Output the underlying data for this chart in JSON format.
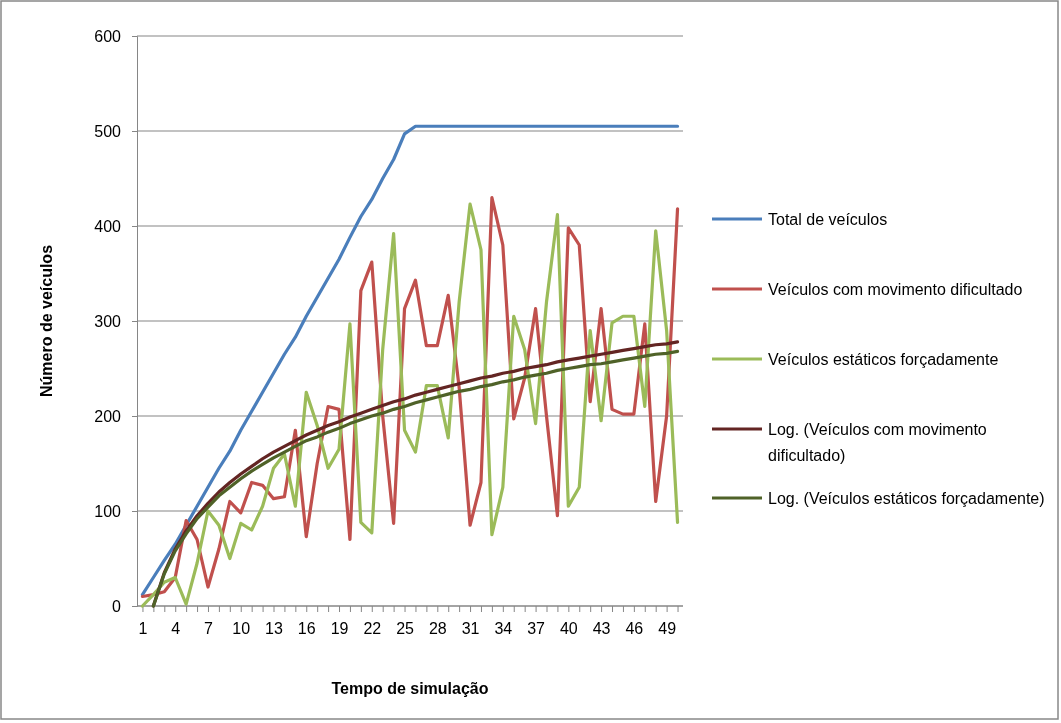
{
  "chart_data": {
    "type": "line",
    "xlabel": "Tempo de simulação",
    "ylabel": "Número de veículos",
    "categories": [
      "1",
      null,
      null,
      "4",
      null,
      null,
      "7",
      null,
      null,
      "10",
      null,
      null,
      "13",
      null,
      null,
      "16",
      null,
      null,
      "19",
      null,
      null,
      "22",
      null,
      null,
      "25",
      null,
      null,
      "28",
      null,
      null,
      "31",
      null,
      null,
      "34",
      null,
      null,
      "37",
      null,
      null,
      "40",
      null,
      null,
      "43",
      null,
      null,
      "46",
      null,
      null,
      "49",
      null
    ],
    "ylim": [
      0,
      600
    ],
    "yticks": [
      0,
      100,
      200,
      300,
      400,
      500,
      600
    ],
    "grid": "y",
    "legend": "right",
    "marker": "none",
    "line_style": "solid",
    "series": [
      {
        "name": "Total de veículos",
        "color": "#4a7ebb",
        "values": [
          12,
          30,
          48,
          65,
          85,
          105,
          125,
          145,
          163,
          185,
          205,
          225,
          245,
          265,
          283,
          305,
          325,
          345,
          365,
          388,
          410,
          428,
          450,
          470,
          497,
          505,
          505,
          505,
          505,
          505,
          505,
          505,
          505,
          505,
          505,
          505,
          505,
          505,
          505,
          505,
          505,
          505,
          505,
          505,
          505,
          505,
          505,
          505,
          505,
          505
        ]
      },
      {
        "name": "Veículos com movimento dificultado",
        "color": "#c0504d",
        "values": [
          10,
          12,
          15,
          30,
          90,
          70,
          20,
          60,
          110,
          98,
          130,
          127,
          113,
          115,
          185,
          73,
          150,
          210,
          207,
          70,
          332,
          362,
          200,
          87,
          313,
          343,
          274,
          274,
          327,
          230,
          85,
          130,
          430,
          380,
          197,
          240,
          313,
          200,
          95,
          398,
          380,
          215,
          313,
          207,
          202,
          202,
          297,
          110,
          200,
          418
        ]
      },
      {
        "name": "Veículos estáticos forçadamente",
        "color": "#9bbb59",
        "values": [
          0,
          12,
          25,
          30,
          2,
          45,
          100,
          85,
          50,
          87,
          80,
          105,
          145,
          160,
          105,
          225,
          190,
          145,
          165,
          297,
          88,
          77,
          270,
          392,
          185,
          162,
          232,
          232,
          177,
          320,
          423,
          375,
          75,
          125,
          305,
          270,
          192,
          320,
          412,
          105,
          125,
          290,
          195,
          298,
          305,
          305,
          210,
          395,
          290,
          88
        ]
      },
      {
        "name": "Log. (Veículos com movimento dificultado)",
        "color": "#632523",
        "values": [
          null,
          0,
          35,
          60,
          79,
          95,
          108,
          120,
          130,
          139,
          147,
          155,
          162,
          168,
          174,
          180,
          185,
          190,
          194,
          199,
          203,
          207,
          211,
          215,
          218,
          222,
          225,
          228,
          231,
          234,
          237,
          240,
          242,
          245,
          247,
          250,
          252,
          254,
          257,
          259,
          261,
          263,
          265,
          267,
          269,
          271,
          273,
          275,
          276,
          278
        ]
      },
      {
        "name": "Log. (Veículos estáticos forçadamente)",
        "color": "#4f6228",
        "values": [
          null,
          0,
          34,
          58,
          76,
          92,
          104,
          116,
          125,
          134,
          142,
          149,
          156,
          162,
          168,
          174,
          178,
          183,
          187,
          192,
          196,
          200,
          203,
          207,
          210,
          214,
          217,
          220,
          223,
          226,
          228,
          231,
          233,
          236,
          238,
          241,
          243,
          245,
          248,
          250,
          252,
          254,
          255,
          257,
          259,
          261,
          263,
          265,
          266,
          268
        ]
      }
    ]
  }
}
